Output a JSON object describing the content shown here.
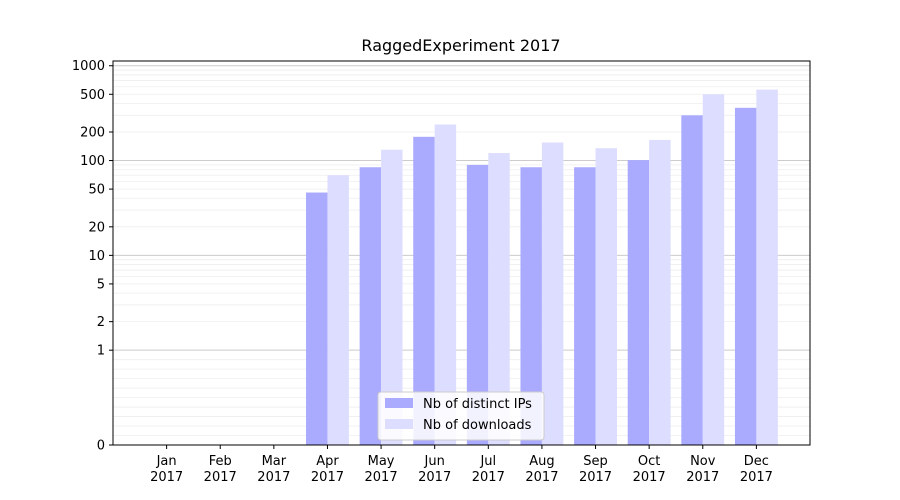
{
  "chart_data": {
    "type": "bar",
    "title": "RaggedExperiment 2017",
    "xlabel": "",
    "ylabel": "",
    "categories": [
      [
        "Jan",
        "2017"
      ],
      [
        "Feb",
        "2017"
      ],
      [
        "Mar",
        "2017"
      ],
      [
        "Apr",
        "2017"
      ],
      [
        "May",
        "2017"
      ],
      [
        "Jun",
        "2017"
      ],
      [
        "Jul",
        "2017"
      ],
      [
        "Aug",
        "2017"
      ],
      [
        "Sep",
        "2017"
      ],
      [
        "Oct",
        "2017"
      ],
      [
        "Nov",
        "2017"
      ],
      [
        "Dec",
        "2017"
      ]
    ],
    "series": [
      {
        "name": "Nb of distinct IPs",
        "color": "#aaaaff",
        "values": [
          0,
          0,
          0,
          46,
          85,
          178,
          90,
          85,
          85,
          101,
          300,
          360
        ]
      },
      {
        "name": "Nb of downloads",
        "color": "#ddddff",
        "values": [
          0,
          0,
          0,
          70,
          130,
          240,
          120,
          155,
          135,
          165,
          500,
          560
        ]
      }
    ],
    "y_scale": "symlog",
    "ylim": [
      0,
      1000
    ],
    "y_ticks": [
      0,
      1,
      2,
      5,
      10,
      20,
      50,
      100,
      200,
      500,
      1000
    ],
    "grid": true,
    "legend_position": "bottom-center"
  }
}
